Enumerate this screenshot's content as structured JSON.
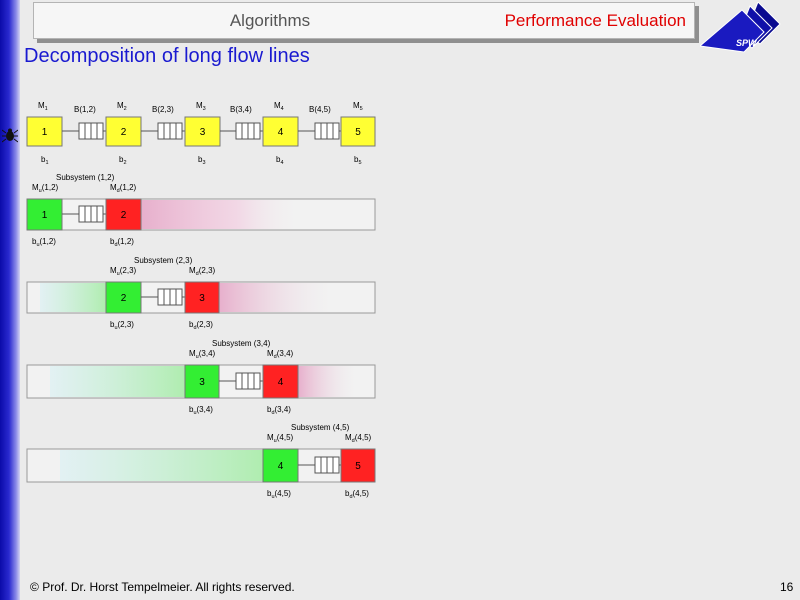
{
  "header": {
    "section": "Algorithms",
    "topic": "Performance Evaluation",
    "logo_text": "SPW"
  },
  "slide_title": "Decomposition of long flow lines",
  "flow_line": {
    "machines": [
      {
        "label": "M",
        "sub": "1",
        "num": "1",
        "buffer": "b",
        "buffer_sub": "1"
      },
      {
        "label": "M",
        "sub": "2",
        "num": "2",
        "buffer": "b",
        "buffer_sub": "2"
      },
      {
        "label": "M",
        "sub": "3",
        "num": "3",
        "buffer": "b",
        "buffer_sub": "3"
      },
      {
        "label": "M",
        "sub": "4",
        "num": "4",
        "buffer": "b",
        "buffer_sub": "4"
      },
      {
        "label": "M",
        "sub": "5",
        "num": "5",
        "buffer": "b",
        "buffer_sub": "5"
      }
    ],
    "buffers": [
      "B(1,2)",
      "B(2,3)",
      "B(3,4)",
      "B(4,5)"
    ]
  },
  "subsystems": [
    {
      "title": "Subsystem (1,2)",
      "up_num": "1",
      "down_num": "2",
      "pair": "(1,2)"
    },
    {
      "title": "Subsystem (2,3)",
      "up_num": "2",
      "down_num": "3",
      "pair": "(2,3)"
    },
    {
      "title": "Subsystem (3,4)",
      "up_num": "3",
      "down_num": "4",
      "pair": "(3,4)"
    },
    {
      "title": "Subsystem (4,5)",
      "up_num": "4",
      "down_num": "5",
      "pair": "(4,5)"
    }
  ],
  "letters": {
    "M": "M",
    "b": "b",
    "u": "u",
    "d": "d"
  },
  "footer": {
    "copyright_symbol": "©",
    "text": "Prof. Dr. Horst Tempelmeier. All rights reserved.",
    "page": "16"
  },
  "colors": {
    "sidebar": "#1a1ab8",
    "title": "#1a1ad0",
    "topic": "#e00000",
    "machine_yellow": "#ffff33",
    "upstream_green": "#33ee33",
    "downstream_red": "#ff2222"
  }
}
